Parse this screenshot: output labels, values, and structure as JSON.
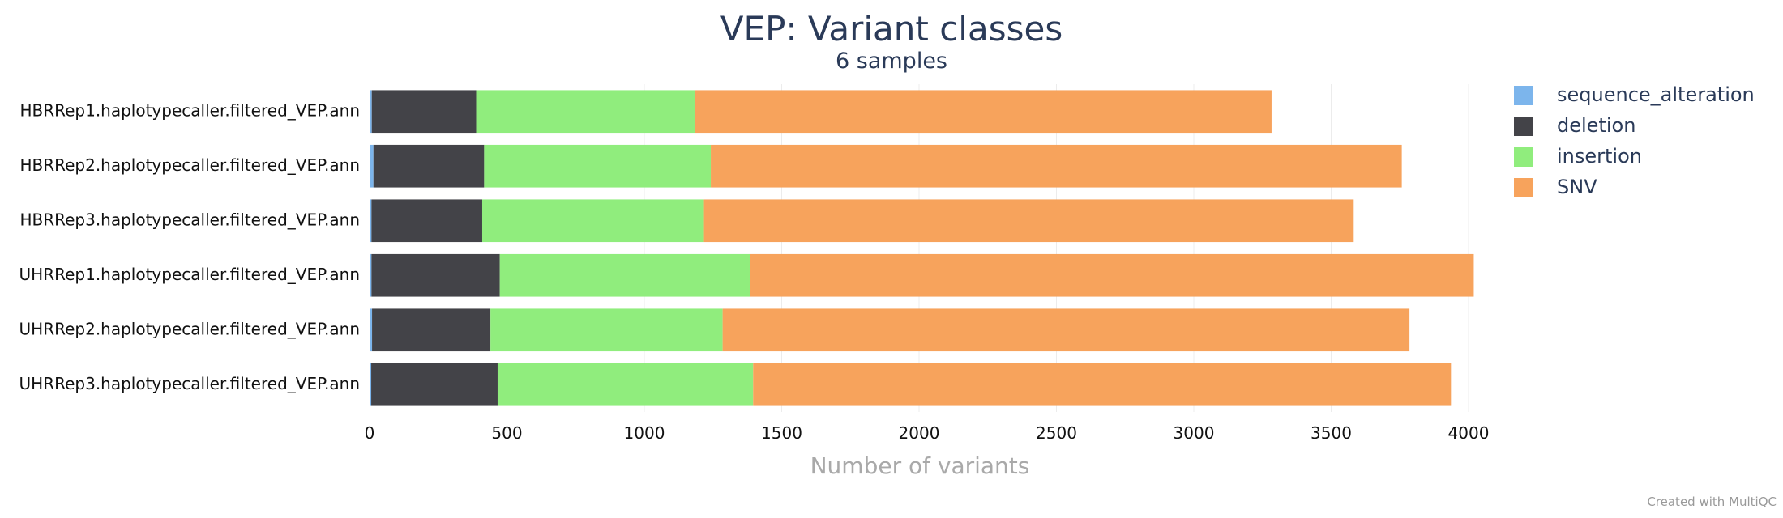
{
  "chart_data": {
    "type": "bar",
    "orientation": "horizontal",
    "stacked": true,
    "title": "VEP: Variant classes",
    "subtitle": "6 samples",
    "xlabel": "Number of variants",
    "ylabel": "",
    "xlim": [
      0,
      4000
    ],
    "xticks": [
      0,
      500,
      1000,
      1500,
      2000,
      2500,
      3000,
      3500,
      4000
    ],
    "grid": true,
    "legend_position": "top-right",
    "categories": [
      "HBRRep1.haplotypecaller.filtered_VEP.ann",
      "HBRRep2.haplotypecaller.filtered_VEP.ann",
      "HBRRep3.haplotypecaller.filtered_VEP.ann",
      "UHRRep1.haplotypecaller.filtered_VEP.ann",
      "UHRRep2.haplotypecaller.filtered_VEP.ann",
      "UHRRep3.haplotypecaller.filtered_VEP.ann"
    ],
    "series": [
      {
        "name": "sequence_alteration",
        "color": "#7cb5ec",
        "values": [
          8,
          14,
          7,
          7,
          9,
          6
        ]
      },
      {
        "name": "deletion",
        "color": "#434348",
        "values": [
          380,
          403,
          403,
          467,
          431,
          460
        ]
      },
      {
        "name": "insertion",
        "color": "#90ed7d",
        "values": [
          795,
          825,
          807,
          910,
          845,
          930
        ]
      },
      {
        "name": "SNV",
        "color": "#f7a35c",
        "values": [
          2100,
          2515,
          2365,
          2635,
          2500,
          2540
        ]
      }
    ]
  },
  "credit": "Created with MultiQC"
}
